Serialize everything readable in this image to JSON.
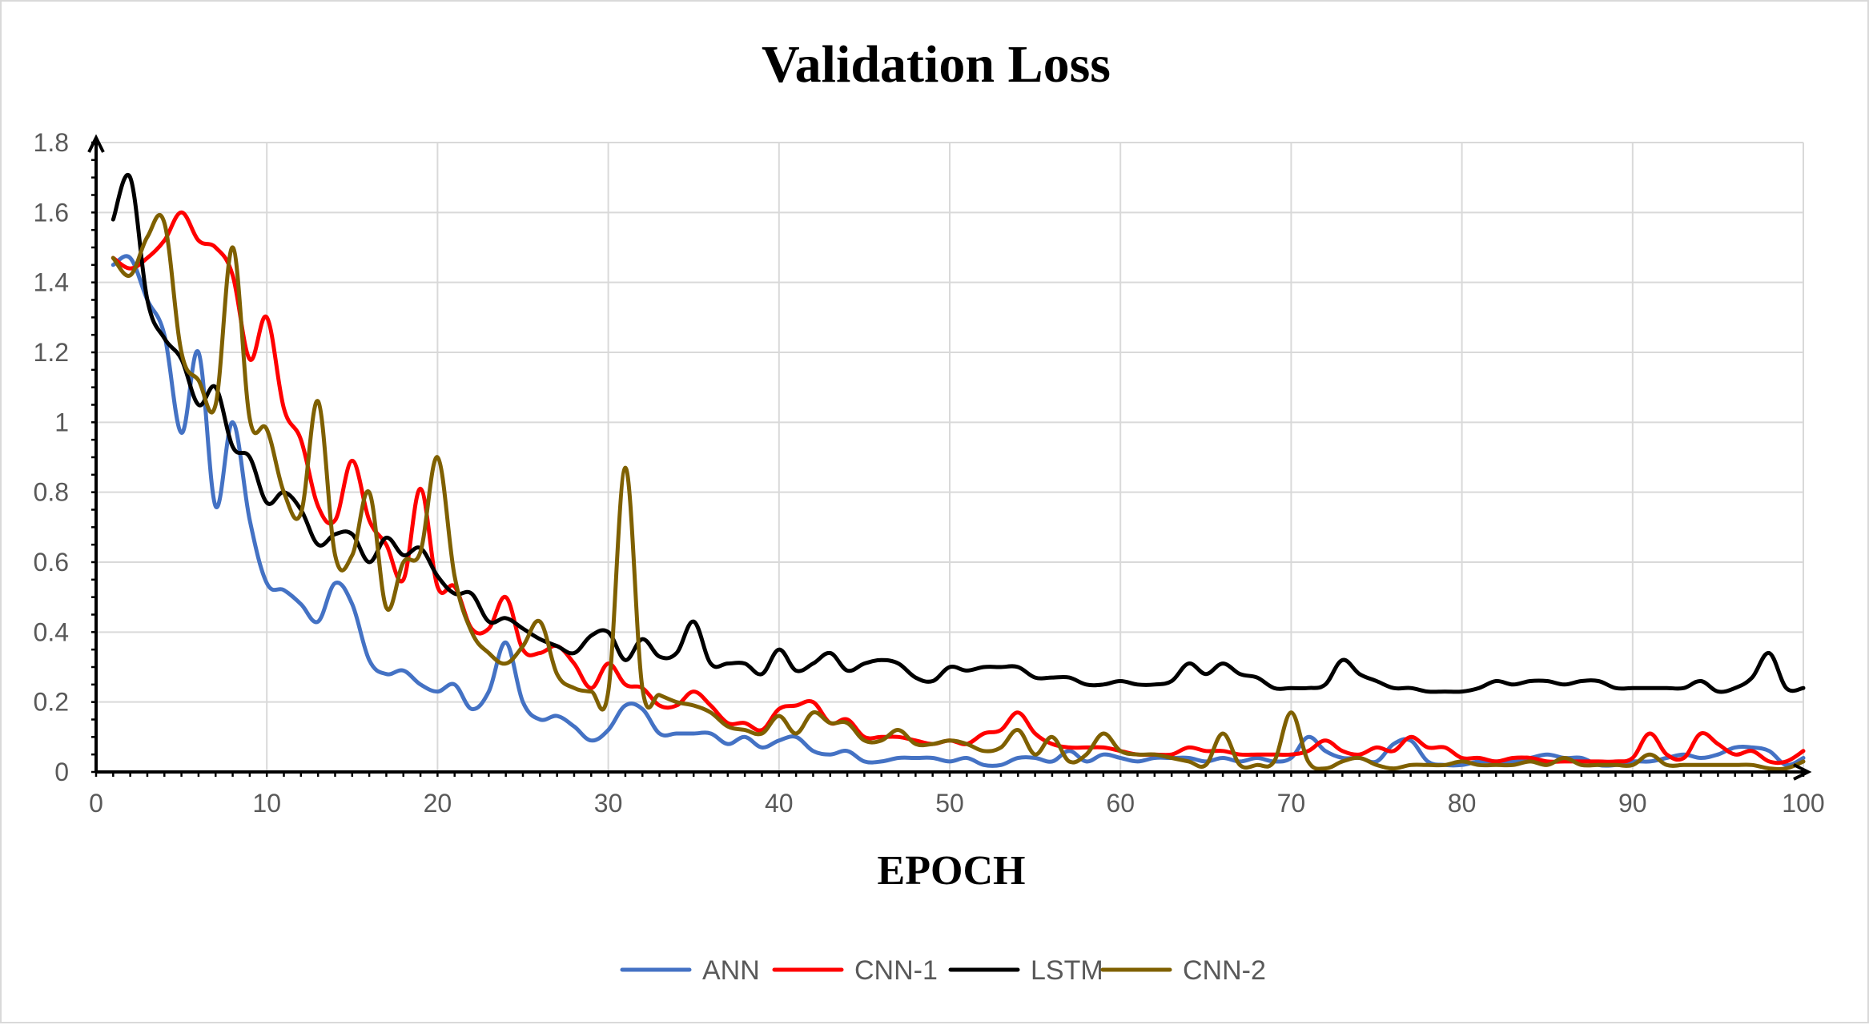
{
  "chart_data": {
    "type": "line",
    "title": "Validation Loss",
    "xlabel": "EPOCH",
    "ylabel": "",
    "xlim": [
      0,
      100
    ],
    "ylim": [
      0,
      1.8
    ],
    "x_ticks": [
      0,
      10,
      20,
      30,
      40,
      50,
      60,
      70,
      80,
      90,
      100
    ],
    "y_ticks": [
      0,
      0.2,
      0.4,
      0.6,
      0.8,
      1,
      1.2,
      1.4,
      1.6,
      1.8
    ],
    "y_tick_labels": [
      "0",
      "0.2",
      "0.4",
      "0.6",
      "0.8",
      "1",
      "1.2",
      "1.4",
      "1.6",
      "1.8"
    ],
    "grid": true,
    "legend_position": "bottom",
    "series": [
      {
        "name": "ANN",
        "color": "#4472c4",
        "x": [
          1,
          2,
          3,
          4,
          5,
          6,
          7,
          8,
          9,
          10,
          11,
          12,
          13,
          14,
          15,
          16,
          17,
          18,
          19,
          20,
          21,
          22,
          23,
          24,
          25,
          26,
          27,
          28,
          29,
          30,
          31,
          32,
          33,
          34,
          35,
          36,
          37,
          38,
          39,
          40,
          41,
          42,
          43,
          44,
          45,
          46,
          47,
          48,
          49,
          50,
          51,
          52,
          53,
          54,
          55,
          56,
          57,
          58,
          59,
          60,
          61,
          62,
          63,
          64,
          65,
          66,
          67,
          68,
          69,
          70,
          71,
          72,
          73,
          74,
          75,
          76,
          77,
          78,
          79,
          80,
          81,
          82,
          83,
          84,
          85,
          86,
          87,
          88,
          89,
          90,
          91,
          92,
          93,
          94,
          95,
          96,
          97,
          98,
          99,
          100
        ],
        "values": [
          1.45,
          1.47,
          1.35,
          1.25,
          0.97,
          1.2,
          0.76,
          1.0,
          0.72,
          0.54,
          0.52,
          0.48,
          0.43,
          0.54,
          0.48,
          0.32,
          0.28,
          0.29,
          0.25,
          0.23,
          0.25,
          0.18,
          0.23,
          0.37,
          0.2,
          0.15,
          0.16,
          0.13,
          0.09,
          0.12,
          0.19,
          0.18,
          0.11,
          0.11,
          0.11,
          0.11,
          0.08,
          0.1,
          0.07,
          0.09,
          0.1,
          0.06,
          0.05,
          0.06,
          0.03,
          0.03,
          0.04,
          0.04,
          0.04,
          0.03,
          0.04,
          0.02,
          0.02,
          0.04,
          0.04,
          0.03,
          0.06,
          0.03,
          0.05,
          0.04,
          0.03,
          0.04,
          0.04,
          0.04,
          0.03,
          0.04,
          0.03,
          0.04,
          0.03,
          0.04,
          0.1,
          0.06,
          0.04,
          0.04,
          0.03,
          0.08,
          0.09,
          0.03,
          0.02,
          0.02,
          0.03,
          0.03,
          0.03,
          0.04,
          0.05,
          0.04,
          0.04,
          0.02,
          0.02,
          0.03,
          0.03,
          0.04,
          0.05,
          0.04,
          0.05,
          0.07,
          0.07,
          0.06,
          0.02,
          0.04
        ]
      },
      {
        "name": "CNN-1",
        "color": "#ff0000",
        "x": [
          1,
          2,
          3,
          4,
          5,
          6,
          7,
          8,
          9,
          10,
          11,
          12,
          13,
          14,
          15,
          16,
          17,
          18,
          19,
          20,
          21,
          22,
          23,
          24,
          25,
          26,
          27,
          28,
          29,
          30,
          31,
          32,
          33,
          34,
          35,
          36,
          37,
          38,
          39,
          40,
          41,
          42,
          43,
          44,
          45,
          46,
          47,
          48,
          49,
          50,
          51,
          52,
          53,
          54,
          55,
          56,
          57,
          58,
          59,
          60,
          61,
          62,
          63,
          64,
          65,
          66,
          67,
          68,
          69,
          70,
          71,
          72,
          73,
          74,
          75,
          76,
          77,
          78,
          79,
          80,
          81,
          82,
          83,
          84,
          85,
          86,
          87,
          88,
          89,
          90,
          91,
          92,
          93,
          94,
          95,
          96,
          97,
          98,
          99,
          100
        ],
        "values": [
          1.47,
          1.44,
          1.47,
          1.52,
          1.6,
          1.52,
          1.5,
          1.42,
          1.18,
          1.3,
          1.04,
          0.95,
          0.76,
          0.72,
          0.89,
          0.72,
          0.65,
          0.55,
          0.81,
          0.53,
          0.53,
          0.41,
          0.41,
          0.5,
          0.35,
          0.34,
          0.36,
          0.31,
          0.24,
          0.31,
          0.25,
          0.24,
          0.19,
          0.19,
          0.23,
          0.19,
          0.14,
          0.14,
          0.12,
          0.18,
          0.19,
          0.2,
          0.14,
          0.15,
          0.1,
          0.1,
          0.1,
          0.09,
          0.08,
          0.09,
          0.08,
          0.11,
          0.12,
          0.17,
          0.11,
          0.08,
          0.07,
          0.07,
          0.07,
          0.06,
          0.05,
          0.05,
          0.05,
          0.07,
          0.06,
          0.06,
          0.05,
          0.05,
          0.05,
          0.05,
          0.06,
          0.09,
          0.06,
          0.05,
          0.07,
          0.06,
          0.1,
          0.07,
          0.07,
          0.04,
          0.04,
          0.03,
          0.04,
          0.04,
          0.03,
          0.03,
          0.03,
          0.03,
          0.03,
          0.04,
          0.11,
          0.05,
          0.04,
          0.11,
          0.08,
          0.05,
          0.06,
          0.03,
          0.03,
          0.06
        ]
      },
      {
        "name": "LSTM",
        "color": "#000000",
        "x": [
          1,
          2,
          3,
          4,
          5,
          6,
          7,
          8,
          9,
          10,
          11,
          12,
          13,
          14,
          15,
          16,
          17,
          18,
          19,
          20,
          21,
          22,
          23,
          24,
          25,
          26,
          27,
          28,
          29,
          30,
          31,
          32,
          33,
          34,
          35,
          36,
          37,
          38,
          39,
          40,
          41,
          42,
          43,
          44,
          45,
          46,
          47,
          48,
          49,
          50,
          51,
          52,
          53,
          54,
          55,
          56,
          57,
          58,
          59,
          60,
          61,
          62,
          63,
          64,
          65,
          66,
          67,
          68,
          69,
          70,
          71,
          72,
          73,
          74,
          75,
          76,
          77,
          78,
          79,
          80,
          81,
          82,
          83,
          84,
          85,
          86,
          87,
          88,
          89,
          90,
          91,
          92,
          93,
          94,
          95,
          96,
          97,
          98,
          99,
          100
        ],
        "values": [
          1.58,
          1.7,
          1.35,
          1.24,
          1.18,
          1.05,
          1.1,
          0.93,
          0.9,
          0.77,
          0.8,
          0.75,
          0.65,
          0.68,
          0.68,
          0.6,
          0.67,
          0.62,
          0.64,
          0.56,
          0.51,
          0.51,
          0.43,
          0.44,
          0.41,
          0.38,
          0.36,
          0.34,
          0.39,
          0.4,
          0.32,
          0.38,
          0.33,
          0.34,
          0.43,
          0.31,
          0.31,
          0.31,
          0.28,
          0.35,
          0.29,
          0.31,
          0.34,
          0.29,
          0.31,
          0.32,
          0.31,
          0.27,
          0.26,
          0.3,
          0.29,
          0.3,
          0.3,
          0.3,
          0.27,
          0.27,
          0.27,
          0.25,
          0.25,
          0.26,
          0.25,
          0.25,
          0.26,
          0.31,
          0.28,
          0.31,
          0.28,
          0.27,
          0.24,
          0.24,
          0.24,
          0.25,
          0.32,
          0.28,
          0.26,
          0.24,
          0.24,
          0.23,
          0.23,
          0.23,
          0.24,
          0.26,
          0.25,
          0.26,
          0.26,
          0.25,
          0.26,
          0.26,
          0.24,
          0.24,
          0.24,
          0.24,
          0.24,
          0.26,
          0.23,
          0.24,
          0.27,
          0.34,
          0.24,
          0.24
        ]
      },
      {
        "name": "CNN-2",
        "color": "#7f6000",
        "x": [
          1,
          2,
          3,
          4,
          5,
          6,
          7,
          8,
          9,
          10,
          11,
          12,
          13,
          14,
          15,
          16,
          17,
          18,
          19,
          20,
          21,
          22,
          23,
          24,
          25,
          26,
          27,
          28,
          29,
          30,
          31,
          32,
          33,
          34,
          35,
          36,
          37,
          38,
          39,
          40,
          41,
          42,
          43,
          44,
          45,
          46,
          47,
          48,
          49,
          50,
          51,
          52,
          53,
          54,
          55,
          56,
          57,
          58,
          59,
          60,
          61,
          62,
          63,
          64,
          65,
          66,
          67,
          68,
          69,
          70,
          71,
          72,
          73,
          74,
          75,
          76,
          77,
          78,
          79,
          80,
          81,
          82,
          83,
          84,
          85,
          86,
          87,
          88,
          89,
          90,
          91,
          92,
          93,
          94,
          95,
          96,
          97,
          98,
          99,
          100
        ],
        "values": [
          1.47,
          1.42,
          1.53,
          1.57,
          1.2,
          1.12,
          1.05,
          1.5,
          1.01,
          0.98,
          0.8,
          0.74,
          1.06,
          0.62,
          0.62,
          0.8,
          0.47,
          0.6,
          0.63,
          0.9,
          0.56,
          0.4,
          0.34,
          0.31,
          0.36,
          0.43,
          0.28,
          0.24,
          0.23,
          0.23,
          0.87,
          0.24,
          0.22,
          0.2,
          0.19,
          0.17,
          0.13,
          0.12,
          0.11,
          0.16,
          0.11,
          0.17,
          0.14,
          0.14,
          0.09,
          0.09,
          0.12,
          0.08,
          0.08,
          0.09,
          0.08,
          0.06,
          0.07,
          0.12,
          0.05,
          0.1,
          0.03,
          0.05,
          0.11,
          0.06,
          0.05,
          0.05,
          0.04,
          0.03,
          0.02,
          0.11,
          0.02,
          0.02,
          0.03,
          0.17,
          0.03,
          0.01,
          0.03,
          0.04,
          0.02,
          0.01,
          0.02,
          0.02,
          0.02,
          0.03,
          0.02,
          0.02,
          0.02,
          0.03,
          0.02,
          0.04,
          0.02,
          0.02,
          0.02,
          0.02,
          0.05,
          0.02,
          0.02,
          0.02,
          0.02,
          0.02,
          0.02,
          0.01,
          0.01,
          0.03
        ]
      }
    ]
  }
}
